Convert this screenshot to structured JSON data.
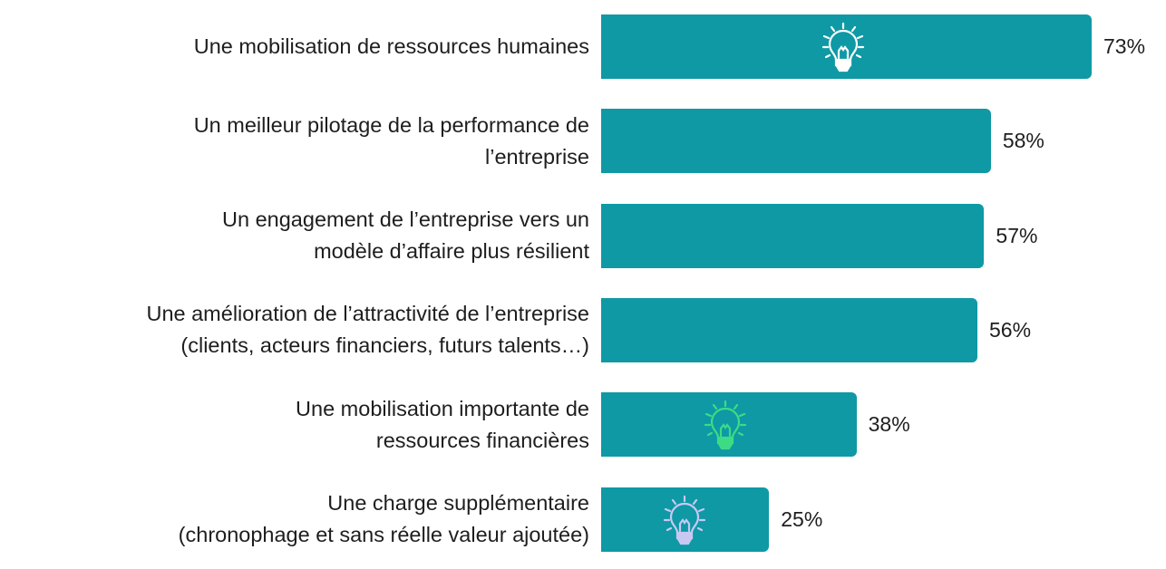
{
  "chart_data": {
    "type": "bar",
    "orientation": "horizontal",
    "categories": [
      [
        "Une mobilisation de ressources humaines"
      ],
      [
        "Un meilleur pilotage de la performance de",
        "l’entreprise"
      ],
      [
        "Un engagement de l’entreprise vers un",
        "modèle d’affaire plus résilient"
      ],
      [
        "Une amélioration de l’attractivité de l’entreprise",
        "(clients, acteurs financiers, futurs talents…)"
      ],
      [
        "Une mobilisation importante de",
        "ressources financières"
      ],
      [
        "Une charge supplémentaire",
        "(chronophage et sans réelle valeur ajoutée)"
      ]
    ],
    "values": [
      73,
      58,
      57,
      56,
      38,
      25
    ],
    "value_labels": [
      "73%",
      "58%",
      "57%",
      "56%",
      "38%",
      "25%"
    ],
    "xlim": [
      0,
      73
    ],
    "grid": false,
    "bar_color": "#0e99a5",
    "icons": [
      {
        "row": 0,
        "name": "lightbulb-icon",
        "color": "#ffffff"
      },
      {
        "row": 4,
        "name": "lightbulb-icon",
        "color": "#3ddc84"
      },
      {
        "row": 5,
        "name": "lightbulb-icon",
        "color": "#c9c8f2"
      }
    ]
  }
}
